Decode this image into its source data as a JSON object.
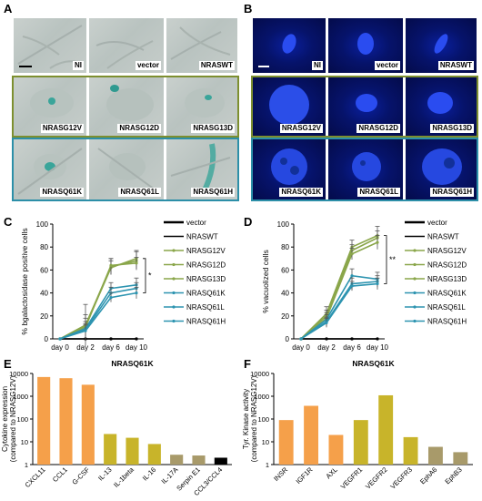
{
  "panels": {
    "A": "A",
    "B": "B",
    "C": "C",
    "D": "D",
    "E": "E",
    "F": "F"
  },
  "panel_a": {
    "row1": [
      "NI",
      "vector",
      "NRASWT"
    ],
    "row2": [
      "NRASG12V",
      "NRASG12D",
      "NRASG13D"
    ],
    "row3": [
      "NRASQ61K",
      "NRASQ61L",
      "NRASQ61H"
    ]
  },
  "panel_b": {
    "row1": [
      "NI",
      "vector",
      "NRASWT"
    ],
    "row2": [
      "NRASG12V",
      "NRASG12D",
      "NRASG13D"
    ],
    "row3": [
      "NRASQ61K",
      "NRASQ61L",
      "NRASQ61H"
    ]
  },
  "colors": {
    "olive": "#7d8f2f",
    "teal": "#2c8fa8",
    "green_line": "#8aa64a",
    "teal_line": "#2d94b0",
    "orange": "#f5a04a",
    "gold": "#c8b42a",
    "khaki": "#a89a6a",
    "black": "#000000"
  },
  "chart_data": [
    {
      "id": "C",
      "type": "line",
      "title": "",
      "xlabel": "",
      "ylabel": "% bgalactosidase positive cells",
      "x": [
        "day 0",
        "day 2",
        "day 6",
        "day 10"
      ],
      "ylim": [
        0,
        100
      ],
      "yticks": [
        "0",
        "20",
        "40",
        "60",
        "80",
        "100"
      ],
      "significance": "*",
      "series": [
        {
          "name": "vector",
          "color": "#000000",
          "values": [
            0,
            0,
            0,
            0
          ],
          "errors": [
            0,
            0,
            0,
            0
          ]
        },
        {
          "name": "NRASWT",
          "color": "#000000",
          "values": [
            0,
            0,
            0,
            0
          ],
          "errors": [
            0,
            0,
            0,
            0
          ]
        },
        {
          "name": "NRASG12V",
          "color": "#8aa64a",
          "values": [
            0,
            12,
            63,
            68
          ],
          "errors": [
            0,
            18,
            7,
            8
          ]
        },
        {
          "name": "NRASG12D",
          "color": "#8aa64a",
          "values": [
            0,
            11,
            62,
            70
          ],
          "errors": [
            0,
            10,
            6,
            7
          ]
        },
        {
          "name": "NRASG13D",
          "color": "#8aa64a",
          "values": [
            0,
            10,
            64,
            66
          ],
          "errors": [
            0,
            8,
            6,
            5
          ]
        },
        {
          "name": "NRASQ61K",
          "color": "#2d94b0",
          "values": [
            0,
            9,
            44,
            47
          ],
          "errors": [
            0,
            6,
            5,
            6
          ]
        },
        {
          "name": "NRASQ61L",
          "color": "#2d94b0",
          "values": [
            0,
            8,
            40,
            44
          ],
          "errors": [
            0,
            5,
            5,
            5
          ]
        },
        {
          "name": "NRASQ61H",
          "color": "#2d94b0",
          "values": [
            0,
            7,
            36,
            40
          ],
          "errors": [
            0,
            5,
            4,
            5
          ]
        }
      ]
    },
    {
      "id": "D",
      "type": "line",
      "title": "",
      "xlabel": "",
      "ylabel": "% vacuolized cells",
      "x": [
        "day 0",
        "day 2",
        "day 6",
        "day 10"
      ],
      "ylim": [
        0,
        100
      ],
      "yticks": [
        "0",
        "20",
        "40",
        "60",
        "80",
        "100"
      ],
      "significance": "**",
      "series": [
        {
          "name": "vector",
          "color": "#000000",
          "values": [
            0,
            0,
            0,
            0
          ],
          "errors": [
            0,
            0,
            0,
            0
          ]
        },
        {
          "name": "NRASWT",
          "color": "#000000",
          "values": [
            0,
            0,
            0,
            0
          ],
          "errors": [
            0,
            0,
            0,
            0
          ]
        },
        {
          "name": "NRASG12V",
          "color": "#8aa64a",
          "values": [
            0,
            22,
            80,
            90
          ],
          "errors": [
            0,
            6,
            6,
            8
          ]
        },
        {
          "name": "NRASG12D",
          "color": "#8aa64a",
          "values": [
            0,
            20,
            77,
            88
          ],
          "errors": [
            0,
            5,
            5,
            6
          ]
        },
        {
          "name": "NRASG13D",
          "color": "#8aa64a",
          "values": [
            0,
            18,
            74,
            84
          ],
          "errors": [
            0,
            5,
            5,
            6
          ]
        },
        {
          "name": "NRASQ61K",
          "color": "#2d94b0",
          "values": [
            0,
            17,
            55,
            52
          ],
          "errors": [
            0,
            4,
            6,
            6
          ]
        },
        {
          "name": "NRASQ61L",
          "color": "#2d94b0",
          "values": [
            0,
            15,
            48,
            50
          ],
          "errors": [
            0,
            4,
            5,
            5
          ]
        },
        {
          "name": "NRASQ61H",
          "color": "#2d94b0",
          "values": [
            0,
            14,
            46,
            48
          ],
          "errors": [
            0,
            4,
            4,
            5
          ]
        }
      ]
    },
    {
      "id": "E",
      "type": "bar",
      "title": "NRASQ61K",
      "xlabel": "",
      "ylabel": "Cytokine expression (compared to NRASG12V)",
      "scale": "log",
      "ylim": [
        1,
        10000
      ],
      "yticks": [
        "1",
        "10",
        "100",
        "1000",
        "10000"
      ],
      "categories": [
        "CXCL11",
        "CCL1",
        "G-CSF",
        "IL-13",
        "IL-1beta",
        "IL-16",
        "IL-17A",
        "Serpin E1",
        "CCL3/CCL4"
      ],
      "values": [
        7000,
        6200,
        3200,
        22,
        15,
        8,
        2.7,
        2.5,
        2.0
      ],
      "bar_colors": [
        "#f5a04a",
        "#f5a04a",
        "#f5a04a",
        "#c8b42a",
        "#c8b42a",
        "#c8b42a",
        "#a89a6a",
        "#a89a6a",
        "#000000"
      ]
    },
    {
      "id": "F",
      "type": "bar",
      "title": "NRASQ61K",
      "xlabel": "",
      "ylabel": "Tyr. Kinase activity (compared to NRASG12V)",
      "scale": "log",
      "ylim": [
        1,
        10000
      ],
      "yticks": [
        "1",
        "10",
        "100",
        "1000",
        "10000"
      ],
      "categories": [
        "INSR",
        "IGF1R",
        "AXL",
        "VEGFR1",
        "VEGFR2",
        "VEGFR3",
        "EphA6",
        "EphB3"
      ],
      "values": [
        90,
        380,
        20,
        90,
        1100,
        16,
        6,
        3.5
      ],
      "bar_colors": [
        "#f5a04a",
        "#f5a04a",
        "#f5a04a",
        "#c8b42a",
        "#c8b42a",
        "#c8b42a",
        "#a89a6a",
        "#a89a6a"
      ]
    }
  ]
}
